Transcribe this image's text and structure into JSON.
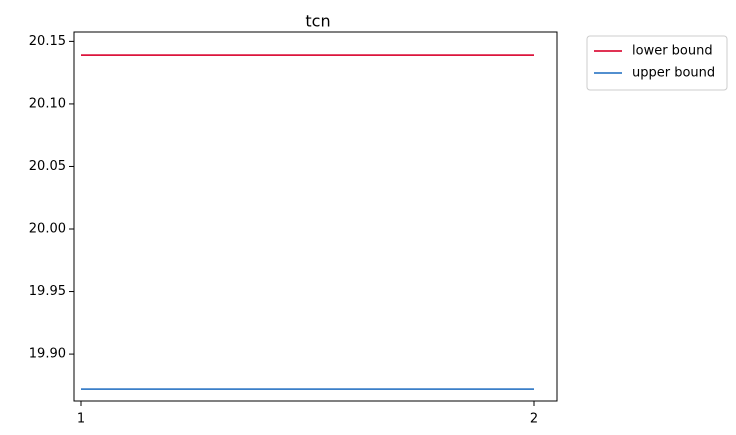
{
  "chart_data": {
    "type": "line",
    "title": "tcn",
    "xlabel": "",
    "ylabel": "",
    "x": [
      1,
      2
    ],
    "x_tick_labels": [
      "1",
      "2"
    ],
    "ylim": [
      19.8625,
      20.1575
    ],
    "y_ticks": [
      19.9,
      19.95,
      20.0,
      20.05,
      20.1,
      20.15
    ],
    "y_tick_labels": [
      "19.90",
      "19.95",
      "20.00",
      "20.05",
      "20.10",
      "20.15"
    ],
    "grid": false,
    "legend_position": "outside upper right",
    "series": [
      {
        "name": "lower bound",
        "values": [
          20.139,
          20.139
        ],
        "color": "#dc143c"
      },
      {
        "name": "upper bound",
        "values": [
          19.872,
          19.872
        ],
        "color": "#3a7fc8"
      }
    ]
  }
}
